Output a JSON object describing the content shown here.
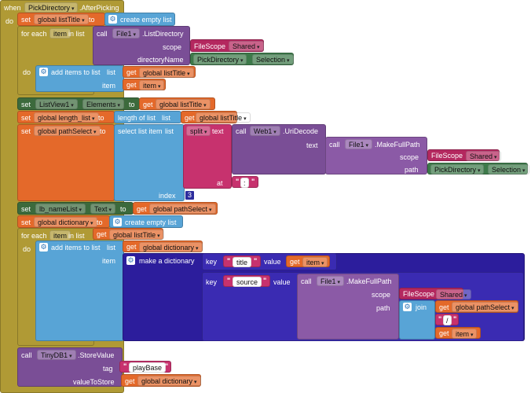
{
  "event": {
    "when": "when",
    "component": "PickDirectory",
    "event": ".AfterPicking",
    "do": "do"
  },
  "kw": {
    "set": "set",
    "to": "to",
    "get": "get",
    "call": "call",
    "do": "do",
    "for_each": "for each",
    "in_list": "in list",
    "item": "item",
    "create_empty_list": "create empty list",
    "add_items_to_list": "add items to list",
    "list": "list",
    "length_of_list": "length of list",
    "select_list_item": "select list item",
    "index": "index",
    "split": "split",
    "text": "text",
    "at": "at",
    "scope": "scope",
    "path": "path",
    "directoryName": "directoryName",
    "make_a_dictionary": "make a dictionary",
    "key": "key",
    "value": "value",
    "join": "join",
    "tag": "tag",
    "valueToStore": "valueToStore"
  },
  "vars": {
    "listTitle": "global listTitle",
    "length_list": "global length_list",
    "pathSelect": "global pathSelect",
    "dictionary": "global dictionary",
    "item": "item"
  },
  "components": {
    "File1": "File1",
    "ListDirectory": ".ListDirectory",
    "FileScope": "FileScope",
    "Shared": "Shared",
    "PickDirectory": "PickDirectory",
    "Selection": "Selection",
    "ListView1": "ListView1",
    "Elements": "Elements",
    "Web1": "Web1",
    "UriDecode": ".UriDecode",
    "MakeFullPath": ".MakeFullPath",
    "lb_nameList": "lb_nameList",
    "Text": "Text",
    "TinyDB1": "TinyDB1",
    "StoreValue": ".StoreValue"
  },
  "literals": {
    "colon": ":",
    "index3": "3",
    "title": "title",
    "source": "source",
    "slash": "/",
    "playBase": "playBase"
  }
}
